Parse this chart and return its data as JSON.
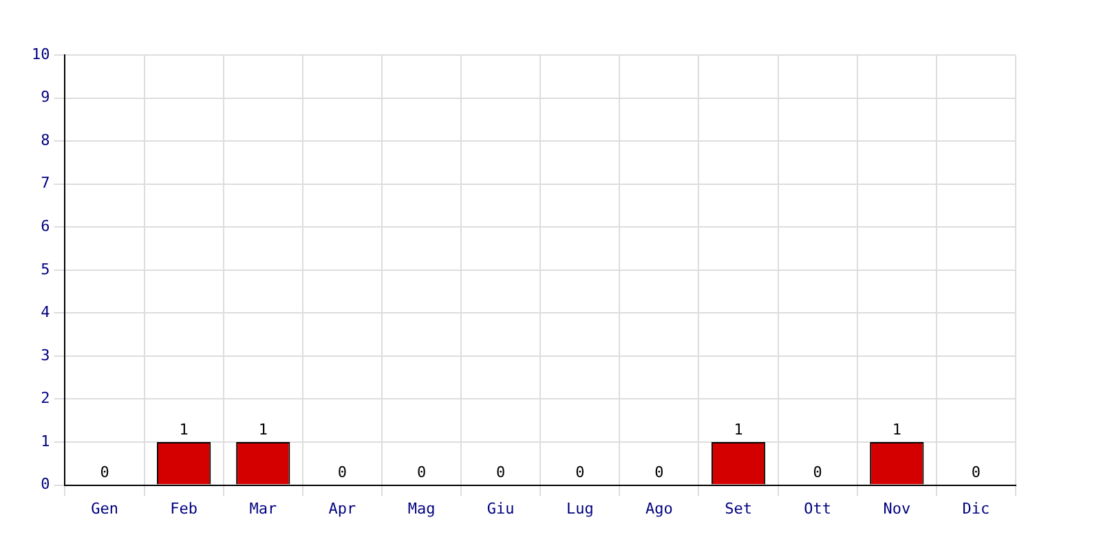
{
  "chart_data": {
    "type": "bar",
    "categories": [
      "Gen",
      "Feb",
      "Mar",
      "Apr",
      "Mag",
      "Giu",
      "Lug",
      "Ago",
      "Set",
      "Ott",
      "Nov",
      "Dic"
    ],
    "values": [
      0,
      1,
      1,
      0,
      0,
      0,
      0,
      0,
      1,
      0,
      1,
      0
    ],
    "color": "#d40000",
    "ylim": [
      0,
      10
    ],
    "yticks": [
      0,
      1,
      2,
      3,
      4,
      5,
      6,
      7,
      8,
      9,
      10
    ],
    "grid": true,
    "data_labels": true,
    "legend": false
  }
}
